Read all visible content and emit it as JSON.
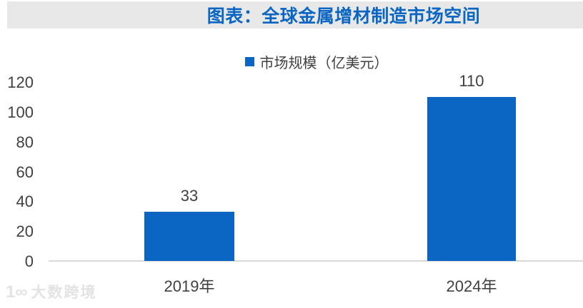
{
  "header": {
    "title": "图表：全球金属增材制造市场空间"
  },
  "legend": {
    "label": "市场规模（亿美元）",
    "marker": "square-icon"
  },
  "chart_data": {
    "type": "bar",
    "title": "图表：全球金属增材制造市场空间",
    "series_name": "市场规模（亿美元）",
    "categories": [
      "2019年",
      "2024年"
    ],
    "values": [
      33,
      110
    ],
    "xlabel": "",
    "ylabel": "",
    "ylim": [
      0,
      120
    ],
    "yticks": [
      0,
      20,
      40,
      60,
      80,
      100,
      120
    ],
    "grid": false,
    "legend_position": "top-center",
    "bar_color": "#0A66C2"
  },
  "colors": {
    "accent": "#0A66C2",
    "title_bg": "#E8E8E8",
    "axis_text": "#404040",
    "baseline": "#D9D9D9",
    "watermark": "#E3E3E3"
  },
  "watermark": {
    "logo": "1∞",
    "text": "大数跨境"
  }
}
